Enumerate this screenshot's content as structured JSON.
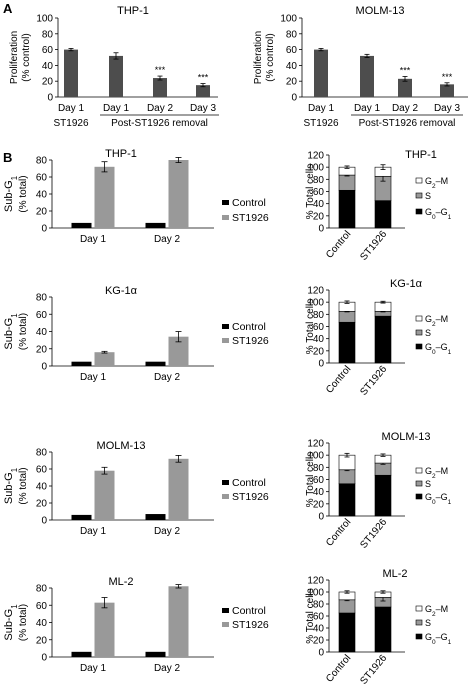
{
  "panels": {
    "A": "A",
    "B": "B"
  },
  "chart_data": [
    {
      "type": "bar",
      "id": "a1",
      "title": "THP-1",
      "ylabel_lines": [
        "Proliferation",
        "(% control)"
      ],
      "ylim": [
        0,
        100
      ],
      "yticks": [
        0,
        20,
        40,
        60,
        80,
        100
      ],
      "categories": [
        "Day 1",
        "Day 1",
        "Day 2",
        "Day 3"
      ],
      "category_groups": [
        {
          "label": "ST1926",
          "from": 0,
          "to": 0
        },
        {
          "label": "Post-ST1926 removal",
          "from": 1,
          "to": 3
        }
      ],
      "values": [
        60,
        52,
        24,
        15
      ],
      "errors": [
        1.5,
        4,
        2.5,
        2
      ],
      "annotations": [
        "",
        "",
        "***",
        "***"
      ],
      "color": "#4d4d4d"
    },
    {
      "type": "bar",
      "id": "a2",
      "title": "MOLM-13",
      "ylabel_lines": [
        "Proliferation",
        "(% control)"
      ],
      "ylim": [
        0,
        100
      ],
      "yticks": [
        0,
        20,
        40,
        60,
        80,
        100
      ],
      "categories": [
        "Day 1",
        "Day 1",
        "Day 2",
        "Day 3"
      ],
      "category_groups": [
        {
          "label": "ST1926",
          "from": 0,
          "to": 0
        },
        {
          "label": "Post-ST1926 removal",
          "from": 1,
          "to": 3
        }
      ],
      "values": [
        60,
        52,
        23,
        16
      ],
      "errors": [
        1.5,
        2,
        3,
        2
      ],
      "annotations": [
        "",
        "",
        "***",
        "***"
      ],
      "color": "#4d4d4d"
    },
    {
      "type": "bar",
      "id": "b1",
      "title": "THP-1",
      "ylabel_lines": [
        "Sub-G1",
        "(% total)"
      ],
      "ylim": [
        0,
        80
      ],
      "yticks": [
        0,
        20,
        40,
        60,
        80
      ],
      "categories": [
        "Day 1",
        "Day 2"
      ],
      "series": [
        {
          "name": "Control",
          "values": [
            6,
            6
          ],
          "errors": [
            0.5,
            0.5
          ],
          "color": "#000000"
        },
        {
          "name": "ST1926",
          "values": [
            72,
            80
          ],
          "errors": [
            6,
            3
          ],
          "color": "#999999"
        }
      ]
    },
    {
      "type": "bar",
      "stacked": true,
      "id": "c1",
      "title": "THP-1",
      "ylabel": "% Total cells",
      "ylim": [
        0,
        120
      ],
      "yticks": [
        0,
        20,
        40,
        60,
        80,
        100,
        120
      ],
      "categories": [
        "Control",
        "ST1926"
      ],
      "series": [
        {
          "name": "G0–G1",
          "values": [
            62,
            45
          ],
          "errors": [
            2,
            3
          ],
          "color": "#000000"
        },
        {
          "name": "S",
          "values": [
            25,
            40
          ],
          "errors": [
            1.5,
            8
          ],
          "color": "#999999"
        },
        {
          "name": "G2–M",
          "values": [
            13,
            15
          ],
          "errors": [
            2,
            4
          ],
          "color": "#ffffff"
        }
      ]
    },
    {
      "type": "bar",
      "id": "b2",
      "title": "KG-1α",
      "ylabel_lines": [
        "Sub-G1",
        "(% total)"
      ],
      "ylim": [
        0,
        80
      ],
      "yticks": [
        0,
        20,
        40,
        60,
        80
      ],
      "categories": [
        "Day 1",
        "Day 2"
      ],
      "series": [
        {
          "name": "Control",
          "values": [
            5,
            5
          ],
          "errors": [
            0.5,
            0.5
          ],
          "color": "#000000"
        },
        {
          "name": "ST1926",
          "values": [
            16,
            34
          ],
          "errors": [
            1,
            6
          ],
          "color": "#999999"
        }
      ]
    },
    {
      "type": "bar",
      "stacked": true,
      "id": "c2",
      "title": "KG-1α",
      "ylabel": "% Total cells",
      "ylim": [
        0,
        120
      ],
      "yticks": [
        0,
        20,
        40,
        60,
        80,
        100,
        120
      ],
      "categories": [
        "Control",
        "ST1926"
      ],
      "series": [
        {
          "name": "G0–G1",
          "values": [
            67,
            77
          ],
          "errors": [
            1.5,
            2
          ],
          "color": "#000000"
        },
        {
          "name": "S",
          "values": [
            18,
            8
          ],
          "errors": [
            1,
            1
          ],
          "color": "#999999"
        },
        {
          "name": "G2–M",
          "values": [
            15,
            15
          ],
          "errors": [
            2,
            1.5
          ],
          "color": "#ffffff"
        }
      ]
    },
    {
      "type": "bar",
      "id": "b3",
      "title": "MOLM-13",
      "ylabel_lines": [
        "Sub-G1",
        "(% total)"
      ],
      "ylim": [
        0,
        80
      ],
      "yticks": [
        0,
        20,
        40,
        60,
        80
      ],
      "categories": [
        "Day 1",
        "Day 2"
      ],
      "series": [
        {
          "name": "Control",
          "values": [
            6,
            7
          ],
          "errors": [
            0.8,
            0.8
          ],
          "color": "#000000"
        },
        {
          "name": "ST1926",
          "values": [
            58,
            72
          ],
          "errors": [
            4,
            4
          ],
          "color": "#999999"
        }
      ]
    },
    {
      "type": "bar",
      "stacked": true,
      "id": "c3",
      "title": "MOLM-13",
      "ylabel": "% Total cells",
      "ylim": [
        0,
        120
      ],
      "yticks": [
        0,
        20,
        40,
        60,
        80,
        100,
        120
      ],
      "categories": [
        "Control",
        "ST1926"
      ],
      "series": [
        {
          "name": "G0–G1",
          "values": [
            53,
            67
          ],
          "errors": [
            2,
            2
          ],
          "color": "#000000"
        },
        {
          "name": "S",
          "values": [
            23,
            20
          ],
          "errors": [
            1.5,
            2
          ],
          "color": "#999999"
        },
        {
          "name": "G2–M",
          "values": [
            24,
            13
          ],
          "errors": [
            3,
            2
          ],
          "color": "#ffffff"
        }
      ]
    },
    {
      "type": "bar",
      "id": "b4",
      "title": "ML-2",
      "ylabel_lines": [
        "Sub-G1",
        "(% total)"
      ],
      "ylim": [
        0,
        80
      ],
      "yticks": [
        0,
        20,
        40,
        60,
        80
      ],
      "categories": [
        "Day 1",
        "Day 2"
      ],
      "series": [
        {
          "name": "Control",
          "values": [
            6,
            6
          ],
          "errors": [
            0.8,
            0.8
          ],
          "color": "#000000"
        },
        {
          "name": "ST1926",
          "values": [
            63,
            82
          ],
          "errors": [
            6,
            2
          ],
          "color": "#999999"
        }
      ]
    },
    {
      "type": "bar",
      "stacked": true,
      "id": "c4",
      "title": "ML-2",
      "ylabel": "% Total cells",
      "ylim": [
        0,
        120
      ],
      "yticks": [
        0,
        20,
        40,
        60,
        80,
        100,
        120
      ],
      "categories": [
        "Control",
        "ST1926"
      ],
      "series": [
        {
          "name": "G0–G1",
          "values": [
            65,
            75
          ],
          "errors": [
            2,
            2
          ],
          "color": "#000000"
        },
        {
          "name": "S",
          "values": [
            22,
            16
          ],
          "errors": [
            1.5,
            6
          ],
          "color": "#999999"
        },
        {
          "name": "G2–M",
          "values": [
            13,
            9
          ],
          "errors": [
            2,
            2
          ],
          "color": "#ffffff"
        }
      ]
    }
  ]
}
